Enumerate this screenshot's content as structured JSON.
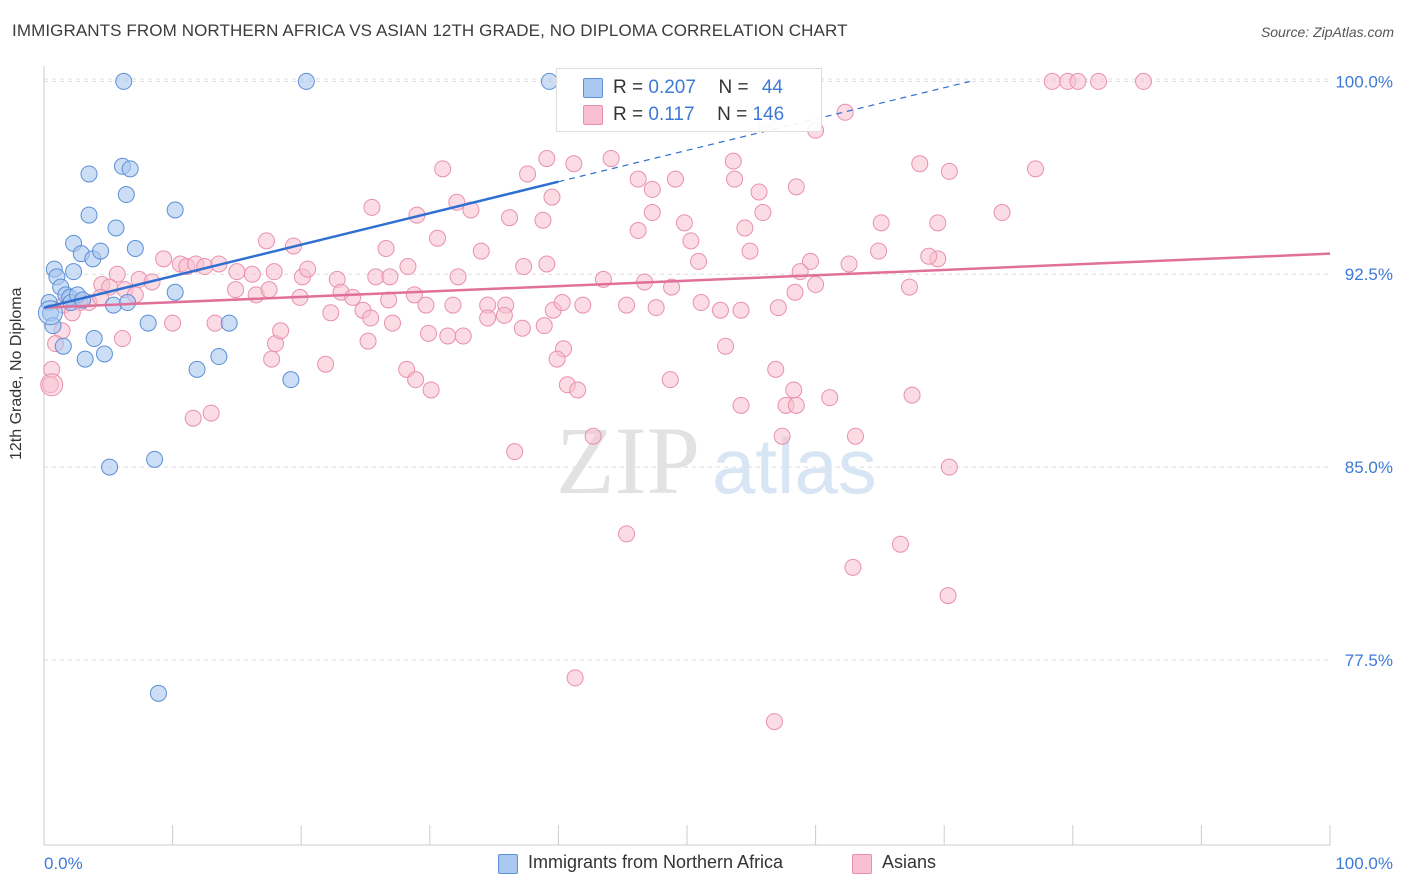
{
  "header": {
    "title": "IMMIGRANTS FROM NORTHERN AFRICA VS ASIAN 12TH GRADE, NO DIPLOMA CORRELATION CHART",
    "source": "Source: ZipAtlas.com"
  },
  "legend": {
    "rows": [
      {
        "r_label": "R = ",
        "r_value": "0.207",
        "n_label": "N = ",
        "n_value": "44"
      },
      {
        "r_label": "R = ",
        "r_value": "0.117",
        "n_label": "N = ",
        "n_value": "146"
      }
    ]
  },
  "bottom_legend": {
    "items": [
      {
        "label": "Immigrants from Northern Africa"
      },
      {
        "label": "Asians"
      }
    ]
  },
  "watermark": {
    "zip": "ZIP",
    "atlas": "atlas"
  },
  "colors": {
    "blue_fill": "#aac8f0",
    "blue_stroke": "#5b8fd6",
    "blue_line": "#2f6fcf",
    "pink_fill": "#f7bfd0",
    "pink_stroke": "#e990ae",
    "pink_line": "#e0709a",
    "tick_label": "#3d7ad6",
    "grid": "#dddddd"
  },
  "chart_data": {
    "type": "scatter",
    "title": "IMMIGRANTS FROM NORTHERN AFRICA VS ASIAN 12TH GRADE, NO DIPLOMA CORRELATION CHART",
    "xlabel": "",
    "ylabel": "12th Grade, No Diploma",
    "xlim": [
      0,
      100
    ],
    "ylim": [
      70.3,
      100.6
    ],
    "x_tick_labels": [
      "0.0%",
      "100.0%"
    ],
    "y_ticks": [
      {
        "value": 100.0,
        "label": "100.0%"
      },
      {
        "value": 92.5,
        "label": "92.5%"
      },
      {
        "value": 85.0,
        "label": "85.0%"
      },
      {
        "value": 77.5,
        "label": "77.5%"
      }
    ],
    "grid": true,
    "legend_position": "top-center",
    "series": [
      {
        "name": "Immigrants from Northern Africa",
        "color": "blue",
        "r": 0.207,
        "n": 44,
        "trend": {
          "x0": 0,
          "y0": 91.2,
          "x1": 40,
          "y1": 96.1,
          "dashed_to_x": 72,
          "dashed_to_y": 100.0
        },
        "points": [
          [
            6.2,
            100.0
          ],
          [
            20.4,
            100.0
          ],
          [
            39.3,
            100.0
          ],
          [
            3.5,
            96.4
          ],
          [
            6.1,
            96.7
          ],
          [
            6.7,
            96.6
          ],
          [
            6.4,
            95.6
          ],
          [
            3.5,
            94.8
          ],
          [
            5.6,
            94.3
          ],
          [
            10.2,
            95.0
          ],
          [
            2.3,
            93.7
          ],
          [
            2.9,
            93.3
          ],
          [
            3.8,
            93.1
          ],
          [
            4.4,
            93.4
          ],
          [
            7.1,
            93.5
          ],
          [
            0.8,
            92.7
          ],
          [
            1.0,
            92.4
          ],
          [
            2.3,
            92.6
          ],
          [
            1.3,
            92.0
          ],
          [
            1.7,
            91.7
          ],
          [
            2.0,
            91.6
          ],
          [
            2.1,
            91.4
          ],
          [
            2.6,
            91.7
          ],
          [
            3.0,
            91.5
          ],
          [
            0.4,
            91.4
          ],
          [
            5.4,
            91.3
          ],
          [
            6.5,
            91.4
          ],
          [
            10.2,
            91.8
          ],
          [
            0.5,
            91.0
          ],
          [
            0.7,
            90.5
          ],
          [
            1.5,
            89.7
          ],
          [
            3.2,
            89.2
          ],
          [
            3.9,
            90.0
          ],
          [
            4.7,
            89.4
          ],
          [
            8.1,
            90.6
          ],
          [
            14.4,
            90.6
          ],
          [
            11.9,
            88.8
          ],
          [
            13.6,
            89.3
          ],
          [
            19.2,
            88.4
          ],
          [
            5.1,
            85.0
          ],
          [
            8.6,
            85.3
          ],
          [
            8.9,
            76.2
          ]
        ]
      },
      {
        "name": "Asians",
        "color": "pink",
        "r": 0.117,
        "n": 146,
        "trend": {
          "x0": 0,
          "y0": 91.2,
          "x1": 100,
          "y1": 93.3
        },
        "points": [
          [
            78.4,
            100.0
          ],
          [
            79.6,
            100.0
          ],
          [
            80.4,
            100.0
          ],
          [
            82.0,
            100.0
          ],
          [
            85.5,
            100.0
          ],
          [
            56.2,
            98.5
          ],
          [
            62.3,
            98.8
          ],
          [
            60.0,
            98.1
          ],
          [
            39.1,
            97.0
          ],
          [
            41.2,
            96.8
          ],
          [
            44.1,
            97.0
          ],
          [
            31.0,
            96.6
          ],
          [
            37.6,
            96.4
          ],
          [
            53.6,
            96.9
          ],
          [
            68.1,
            96.8
          ],
          [
            70.4,
            96.5
          ],
          [
            77.1,
            96.6
          ],
          [
            46.2,
            96.2
          ],
          [
            47.3,
            95.8
          ],
          [
            53.7,
            96.2
          ],
          [
            49.1,
            96.2
          ],
          [
            39.5,
            95.5
          ],
          [
            32.1,
            95.3
          ],
          [
            55.6,
            95.7
          ],
          [
            58.5,
            95.9
          ],
          [
            25.5,
            95.1
          ],
          [
            33.2,
            95.0
          ],
          [
            29.0,
            94.8
          ],
          [
            36.2,
            94.7
          ],
          [
            38.8,
            94.6
          ],
          [
            47.3,
            94.9
          ],
          [
            49.8,
            94.5
          ],
          [
            50.3,
            93.8
          ],
          [
            46.2,
            94.2
          ],
          [
            54.5,
            94.3
          ],
          [
            55.9,
            94.9
          ],
          [
            65.1,
            94.5
          ],
          [
            69.5,
            94.5
          ],
          [
            74.5,
            94.9
          ],
          [
            17.3,
            93.8
          ],
          [
            19.4,
            93.6
          ],
          [
            26.6,
            93.5
          ],
          [
            34.0,
            93.4
          ],
          [
            30.6,
            93.9
          ],
          [
            37.3,
            92.8
          ],
          [
            50.9,
            93.0
          ],
          [
            54.9,
            93.4
          ],
          [
            59.6,
            93.0
          ],
          [
            62.6,
            92.9
          ],
          [
            69.5,
            93.1
          ],
          [
            68.8,
            93.2
          ],
          [
            64.9,
            93.4
          ],
          [
            9.3,
            93.1
          ],
          [
            10.6,
            92.9
          ],
          [
            11.1,
            92.8
          ],
          [
            11.8,
            92.9
          ],
          [
            12.5,
            92.8
          ],
          [
            13.6,
            92.9
          ],
          [
            15.0,
            92.6
          ],
          [
            16.2,
            92.5
          ],
          [
            17.9,
            92.6
          ],
          [
            20.1,
            92.4
          ],
          [
            20.5,
            92.7
          ],
          [
            22.8,
            92.3
          ],
          [
            25.8,
            92.4
          ],
          [
            26.9,
            92.4
          ],
          [
            28.3,
            92.8
          ],
          [
            32.2,
            92.4
          ],
          [
            39.1,
            92.9
          ],
          [
            43.5,
            92.3
          ],
          [
            46.7,
            92.2
          ],
          [
            48.8,
            92.0
          ],
          [
            58.8,
            92.6
          ],
          [
            60.0,
            92.1
          ],
          [
            67.3,
            92.0
          ],
          [
            58.4,
            91.8
          ],
          [
            5.7,
            92.5
          ],
          [
            7.4,
            92.3
          ],
          [
            8.4,
            92.2
          ],
          [
            4.5,
            92.1
          ],
          [
            5.1,
            92.0
          ],
          [
            6.3,
            91.9
          ],
          [
            7.1,
            91.7
          ],
          [
            3.5,
            91.4
          ],
          [
            4.4,
            91.6
          ],
          [
            2.8,
            91.4
          ],
          [
            14.9,
            91.9
          ],
          [
            16.5,
            91.7
          ],
          [
            17.5,
            91.9
          ],
          [
            19.9,
            91.6
          ],
          [
            23.1,
            91.8
          ],
          [
            24.0,
            91.6
          ],
          [
            26.8,
            91.5
          ],
          [
            28.8,
            91.7
          ],
          [
            29.7,
            91.3
          ],
          [
            24.8,
            91.1
          ],
          [
            22.3,
            91.0
          ],
          [
            31.8,
            91.3
          ],
          [
            34.5,
            91.3
          ],
          [
            35.9,
            91.3
          ],
          [
            39.6,
            91.1
          ],
          [
            40.3,
            91.4
          ],
          [
            41.9,
            91.3
          ],
          [
            45.3,
            91.3
          ],
          [
            47.6,
            91.2
          ],
          [
            51.1,
            91.4
          ],
          [
            52.6,
            91.1
          ],
          [
            54.2,
            91.1
          ],
          [
            57.1,
            91.2
          ],
          [
            1.5,
            91.3
          ],
          [
            2.2,
            91.0
          ],
          [
            1.4,
            90.3
          ],
          [
            6.1,
            90.0
          ],
          [
            0.9,
            89.8
          ],
          [
            10.0,
            90.6
          ],
          [
            13.3,
            90.6
          ],
          [
            18.0,
            89.8
          ],
          [
            25.2,
            89.9
          ],
          [
            29.9,
            90.2
          ],
          [
            31.4,
            90.1
          ],
          [
            32.6,
            90.1
          ],
          [
            34.5,
            90.8
          ],
          [
            35.8,
            90.9
          ],
          [
            38.9,
            90.5
          ],
          [
            37.2,
            90.4
          ],
          [
            40.4,
            89.6
          ],
          [
            39.9,
            89.2
          ],
          [
            25.4,
            90.8
          ],
          [
            27.1,
            90.6
          ],
          [
            18.4,
            90.3
          ],
          [
            0.6,
            88.8
          ],
          [
            0.5,
            88.2
          ],
          [
            17.7,
            89.2
          ],
          [
            21.9,
            89.0
          ],
          [
            28.2,
            88.8
          ],
          [
            28.9,
            88.4
          ],
          [
            30.1,
            88.0
          ],
          [
            40.7,
            88.2
          ],
          [
            41.5,
            88.0
          ],
          [
            48.7,
            88.4
          ],
          [
            53.0,
            89.7
          ],
          [
            56.9,
            88.8
          ],
          [
            58.3,
            88.0
          ],
          [
            13.0,
            87.1
          ],
          [
            11.6,
            86.9
          ],
          [
            54.2,
            87.4
          ],
          [
            57.7,
            87.4
          ],
          [
            58.5,
            87.4
          ],
          [
            61.1,
            87.7
          ],
          [
            67.5,
            87.8
          ],
          [
            36.6,
            85.6
          ],
          [
            42.7,
            86.2
          ],
          [
            57.4,
            86.2
          ],
          [
            63.1,
            86.2
          ],
          [
            70.4,
            85.0
          ],
          [
            66.6,
            82.0
          ],
          [
            45.3,
            82.4
          ],
          [
            62.9,
            81.1
          ],
          [
            70.3,
            80.0
          ],
          [
            41.3,
            76.8
          ],
          [
            56.8,
            75.1
          ]
        ]
      }
    ]
  }
}
